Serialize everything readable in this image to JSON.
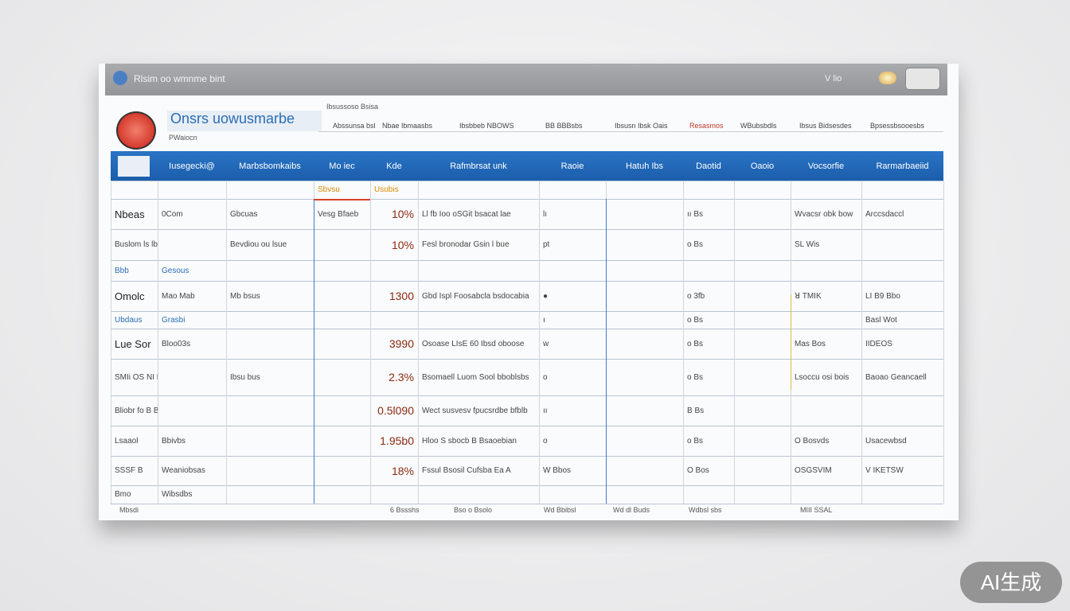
{
  "window": {
    "title": "Rlsim oo wmnme bint",
    "status": "V lio"
  },
  "header": {
    "title": "Onsrs uowusmarbe",
    "subtitle": "PWaiocn",
    "caption": "Ibsussoso Bsisa"
  },
  "tabs": [
    "Abssunsa bsl",
    "Nbae Ibmaasbs",
    "Ibsbbeb NBOWS",
    "BB BBBsbs",
    "Ibsusn Ibsk Oais",
    "Resasmos",
    "WBubsbdls",
    "Ibsus Bidsesdes",
    "Bpsessbsooesbs"
  ],
  "table": {
    "columns": [
      "Iusegecki@",
      "Marbsbomkaibs",
      "Mo iec",
      "Kde",
      "Rafmbrsat unk",
      "Raoie",
      "Hatuh Ibs",
      "Daotid",
      "Oaoio",
      "Vocsorfie",
      "Rarmarbaeiid"
    ],
    "rows": [
      [
        null,
        null,
        null,
        "Sbvsu",
        "Usubis",
        null,
        null,
        null,
        null,
        null,
        null,
        null
      ],
      [
        "Nbeas",
        "0Com",
        "Gbcuas",
        "Vesg Bfaeb",
        "10%",
        "Ll fb Ioo oSGit bsacat lae",
        "lı",
        null,
        "ıı Bs",
        null,
        "Wvacsr obk bow",
        "Arccsdaccl"
      ],
      [
        "Buslom ls lb bbid Gau",
        null,
        "Bevdiou ou lsue",
        null,
        "10%",
        "Fesl bronodar Gsin l bue",
        "pt",
        null,
        "o Bs",
        null,
        "SL Wis",
        null
      ],
      [
        "Bbb",
        "Gesous",
        null,
        null,
        null,
        null,
        null,
        null,
        null,
        null,
        null,
        null
      ],
      [
        "Omolc",
        "Mao Mab",
        "Mb bsus",
        null,
        "1300",
        "Gbd Ispl Foosabcla bsdocabia",
        "●",
        null,
        "o 3fb",
        null,
        "ꓤ TMIK",
        "LI B9 Bbo"
      ],
      [
        "Ubdaus",
        "Grasbi",
        null,
        null,
        null,
        null,
        "ı",
        null,
        "o Bs",
        null,
        null,
        "Basl Wot"
      ],
      [
        "Lue Sor",
        "Bloo03s",
        null,
        null,
        "3990",
        "Osoase LIsE 60 Ibsd oboose",
        "w",
        null,
        "o Bs",
        null,
        "Mas Bos",
        "IIDEOS"
      ],
      [
        "SMIi OS NI NI IS",
        null,
        "Ibsu bus",
        null,
        "2.3%",
        "Bsomaell Luom Sool bboblsbs",
        "o",
        null,
        "o Bs",
        null,
        "Lsoccu osi bois",
        "Baoao Geancaell"
      ],
      [
        "Bliobr fo B Buor",
        null,
        null,
        null,
        "0.5l090",
        "Wect susvesv fpucsrdbe bfblb",
        "ıı",
        null,
        "B Bs",
        null,
        null,
        null
      ],
      [
        "Lsaaol",
        "Bbivbs",
        null,
        null,
        "1.95b0",
        "Hloo S sbocb B Bsaoebian",
        "o",
        null,
        "o Bs",
        null,
        "O Bosvds",
        "Usacewbsd"
      ],
      [
        "SSSF B",
        "Weaniobsas",
        null,
        null,
        "18%",
        "Fssul Bsosil Cufsba Ea A",
        "W Bbos",
        null,
        "O Bos",
        null,
        "OSGSVIM",
        "V IKETSW"
      ],
      [
        "Bmo",
        "Wibsdbs",
        null,
        null,
        null,
        null,
        null,
        null,
        null,
        null,
        null,
        null
      ]
    ],
    "footer": [
      "Mbsdi",
      "6 Bssshs",
      "Bso o Bsolo",
      "Wd Bbibsl",
      "Wd dl Buds",
      "Wdbsl sbs",
      "MIII SSAL"
    ]
  },
  "watermark": "AI生成"
}
